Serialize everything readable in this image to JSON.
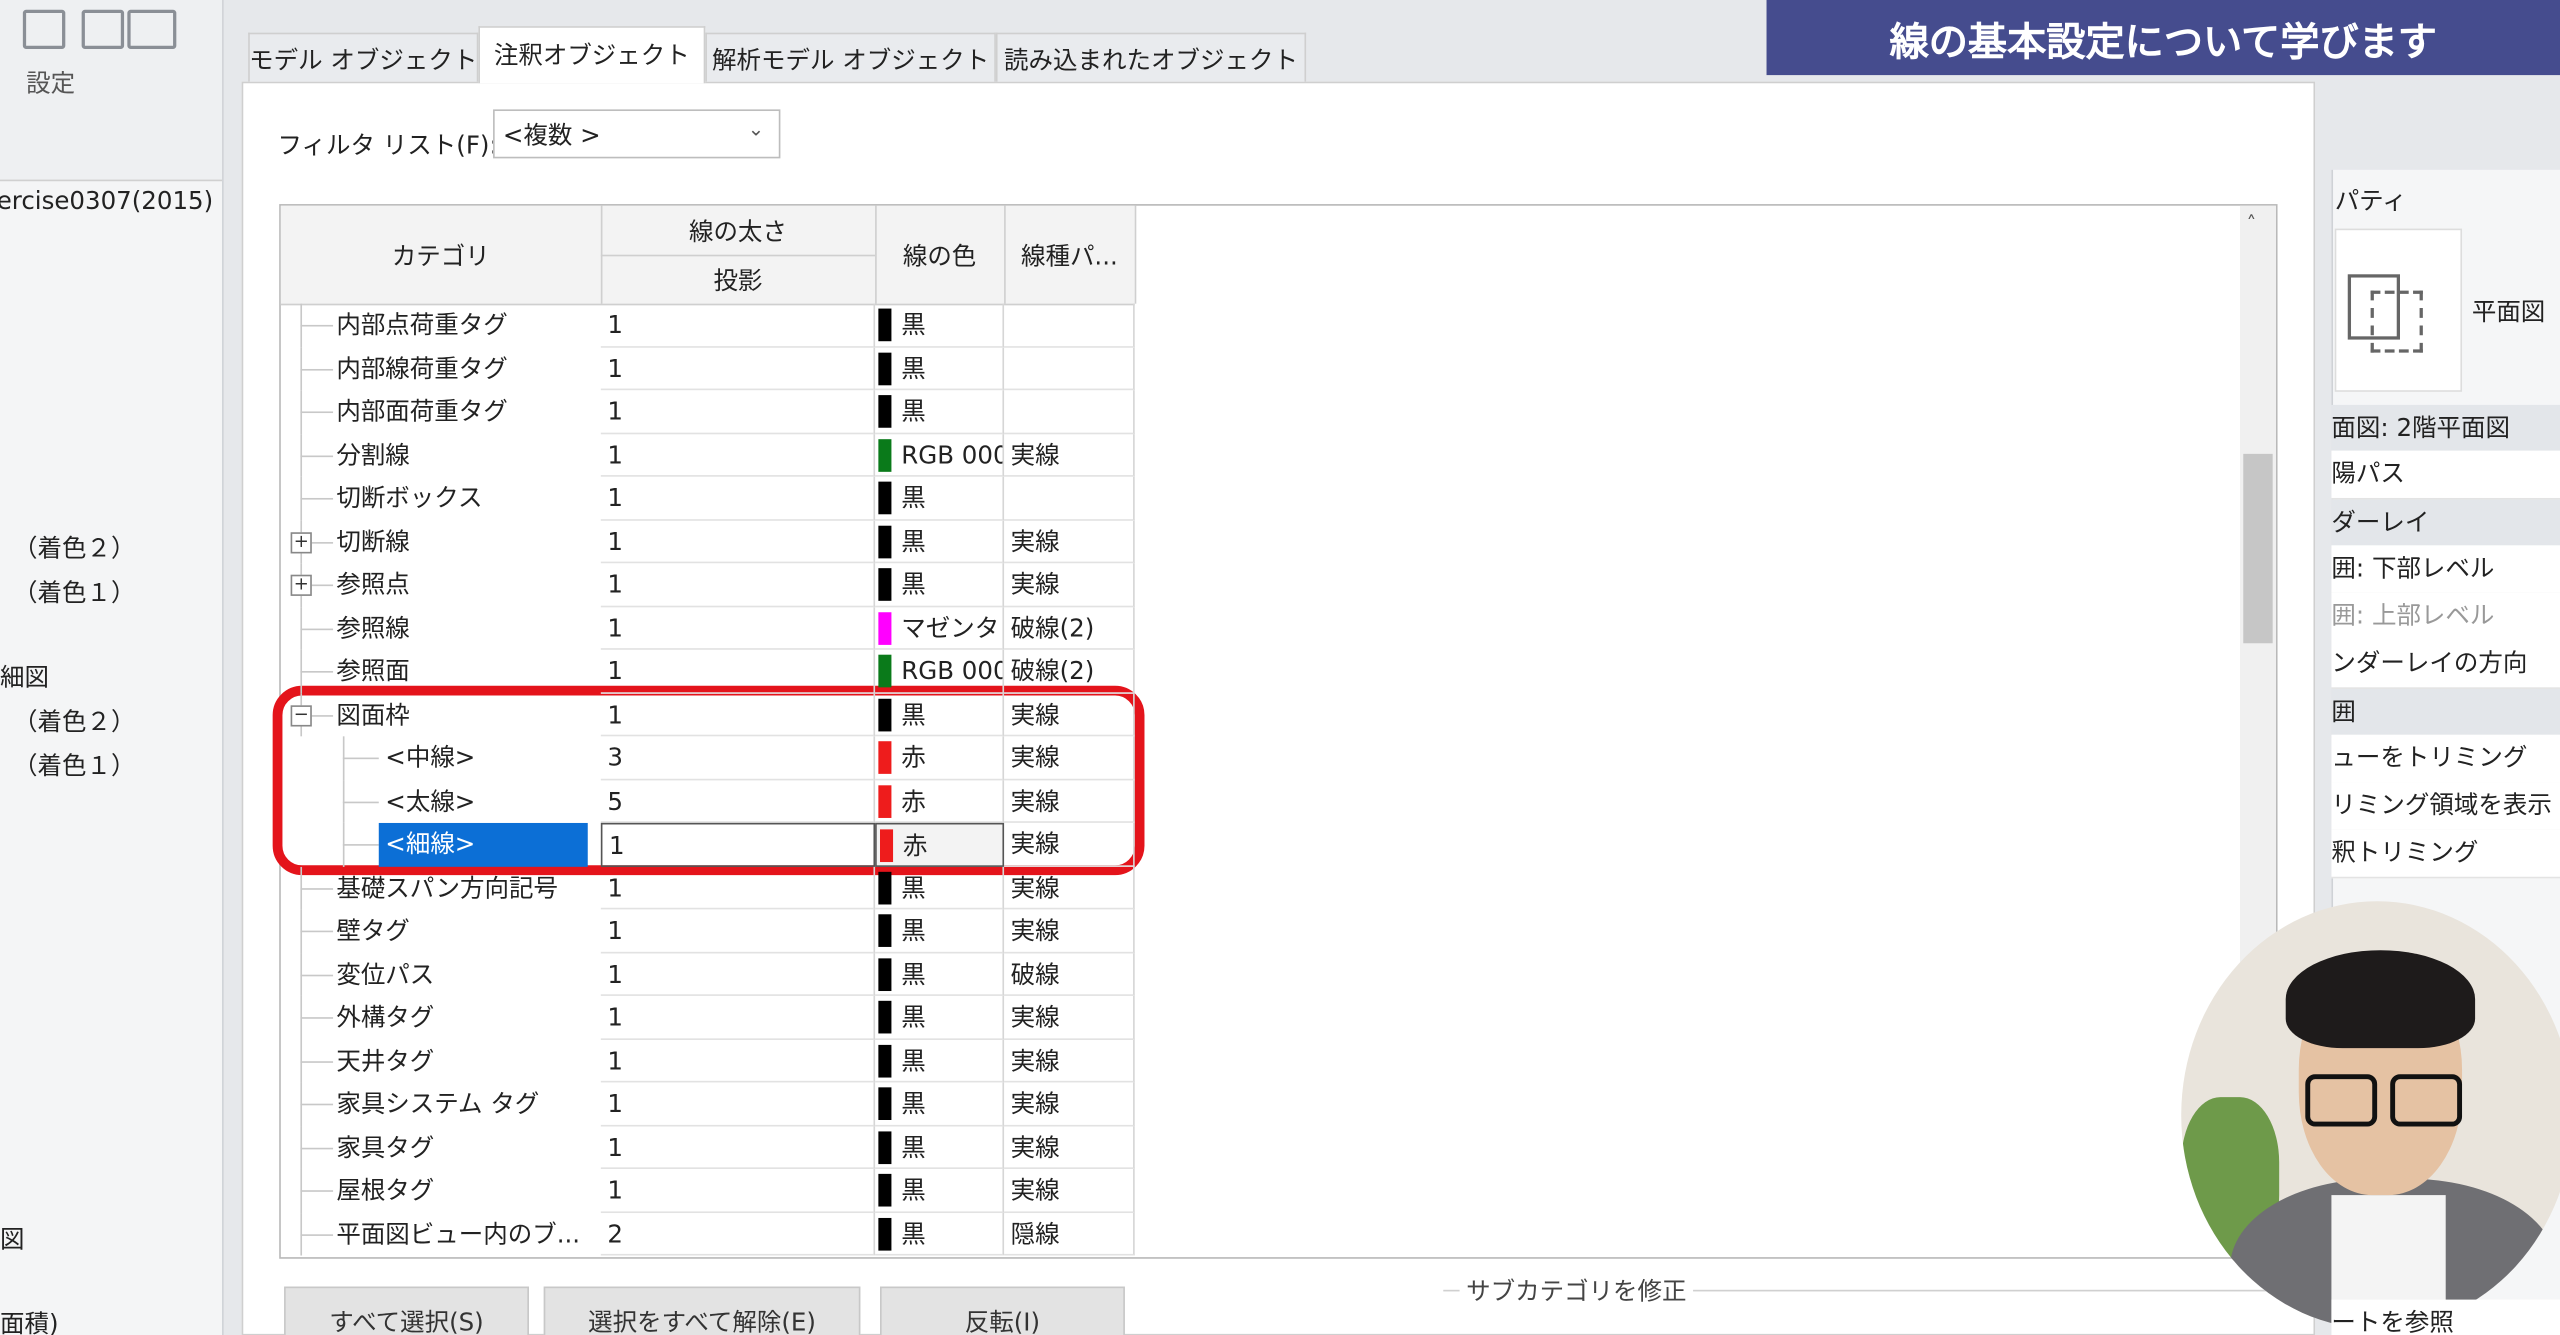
{
  "banner": {
    "title": "線の基本設定について学びます"
  },
  "left_panel": {
    "toolbar_label": "設定",
    "items": [
      "ercise0307(2015)",
      "（着色２）",
      "（着色１）",
      "細図",
      "（着色２）",
      "（着色１）",
      "図",
      "面積)"
    ]
  },
  "tabs": {
    "items": [
      "モデル オブジェクト",
      "注釈オブジェクト",
      "解析モデル オブジェクト",
      "読み込まれたオブジェクト"
    ],
    "active": 1
  },
  "filter": {
    "label": "フィルタ リスト(F):",
    "value": "<複数 >"
  },
  "table": {
    "headers": {
      "category": "カテゴリ",
      "line_weight": "線の太さ",
      "projection": "投影",
      "line_color": "線の色",
      "line_pattern": "線種パ..."
    },
    "rows": [
      {
        "name": "内部点荷重タグ",
        "weight": "1",
        "color": "黒",
        "swatch": "#000000",
        "level": 1
      },
      {
        "name": "内部線荷重タグ",
        "weight": "1",
        "color": "黒",
        "swatch": "#000000",
        "level": 1
      },
      {
        "name": "内部面荷重タグ",
        "weight": "1",
        "color": "黒",
        "swatch": "#000000",
        "level": 1
      },
      {
        "name": "分割線",
        "weight": "1",
        "color": "RGB 000",
        "swatch": "#0a7a1a",
        "pattern": "実線",
        "level": 1
      },
      {
        "name": "切断ボックス",
        "weight": "1",
        "color": "黒",
        "swatch": "#000000",
        "level": 1
      },
      {
        "name": "切断線",
        "weight": "1",
        "color": "黒",
        "swatch": "#000000",
        "pattern": "実線",
        "level": 1,
        "toggle": "collapsed"
      },
      {
        "name": "参照点",
        "weight": "1",
        "color": "黒",
        "swatch": "#000000",
        "pattern": "実線",
        "level": 1,
        "toggle": "collapsed"
      },
      {
        "name": "参照線",
        "weight": "1",
        "color": "マゼンタ",
        "swatch": "#ff00ff",
        "pattern": "破線(2)",
        "level": 1
      },
      {
        "name": "参照面",
        "weight": "1",
        "color": "RGB 000",
        "swatch": "#0a7a1a",
        "pattern": "破線(2)",
        "level": 1
      },
      {
        "name": "図面枠",
        "weight": "1",
        "color": "黒",
        "swatch": "#000000",
        "pattern": "実線",
        "level": 1,
        "toggle": "expanded"
      },
      {
        "name": "<中線>",
        "weight": "3",
        "color": "赤",
        "swatch": "#ee1c1c",
        "pattern": "実線",
        "level": 2
      },
      {
        "name": "<太線>",
        "weight": "5",
        "color": "赤",
        "swatch": "#ee1c1c",
        "pattern": "実線",
        "level": 2
      },
      {
        "name": "<細線>",
        "weight": "1",
        "color": "赤",
        "swatch": "#ee1c1c",
        "pattern": "実線",
        "level": 2,
        "selected": true
      },
      {
        "name": "基礎スパン方向記号",
        "weight": "1",
        "color": "黒",
        "swatch": "#000000",
        "pattern": "実線",
        "level": 1
      },
      {
        "name": "壁タグ",
        "weight": "1",
        "color": "黒",
        "swatch": "#000000",
        "pattern": "実線",
        "level": 1
      },
      {
        "name": "変位パス",
        "weight": "1",
        "color": "黒",
        "swatch": "#000000",
        "pattern": "破線",
        "level": 1
      },
      {
        "name": "外構タグ",
        "weight": "1",
        "color": "黒",
        "swatch": "#000000",
        "pattern": "実線",
        "level": 1
      },
      {
        "name": "天井タグ",
        "weight": "1",
        "color": "黒",
        "swatch": "#000000",
        "pattern": "実線",
        "level": 1
      },
      {
        "name": "家具システム タグ",
        "weight": "1",
        "color": "黒",
        "swatch": "#000000",
        "pattern": "実線",
        "level": 1
      },
      {
        "name": "家具タグ",
        "weight": "1",
        "color": "黒",
        "swatch": "#000000",
        "pattern": "実線",
        "level": 1
      },
      {
        "name": "屋根タグ",
        "weight": "1",
        "color": "黒",
        "swatch": "#000000",
        "pattern": "実線",
        "level": 1
      },
      {
        "name": "平面図ビュー内のブ...",
        "weight": "2",
        "color": "黒",
        "swatch": "#000000",
        "pattern": "隠線",
        "level": 1
      }
    ]
  },
  "buttons": [
    "すべて選択(S)",
    "選択をすべて解除(E)",
    "反転(I)"
  ],
  "subcategory": {
    "label": "サブカテゴリを修正"
  },
  "properties": {
    "title": "パティ",
    "type_name": "平面図",
    "items": [
      "面図: 2階平面図",
      "陽パス",
      "ダーレイ",
      "囲: 下部レベル",
      "囲: 上部レベル",
      "ンダーレイの方向",
      "囲",
      "ューをトリミング",
      "リミング領域を表示",
      "釈トリミング",
      "ートを参照"
    ]
  }
}
